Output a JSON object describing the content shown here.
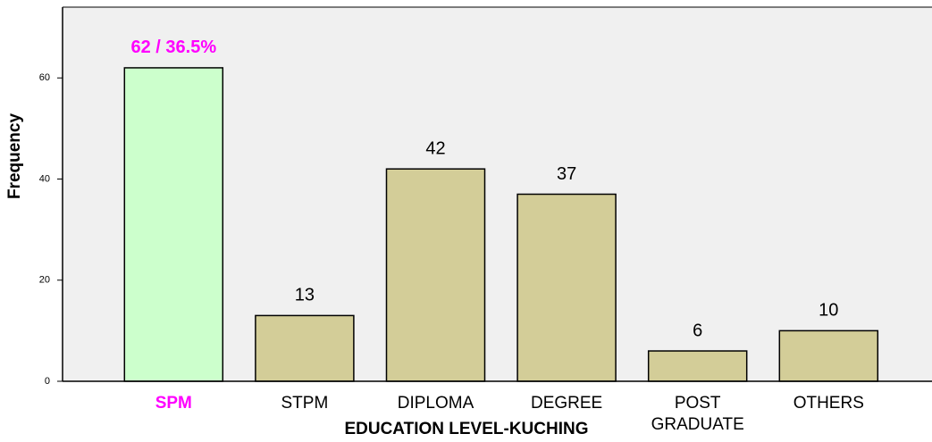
{
  "chart_data": {
    "type": "bar",
    "x_label": "EDUCATION LEVEL-KUCHING",
    "y_label": "Frequency",
    "categories": [
      "SPM",
      "STPM",
      "DIPLOMA",
      "DEGREE",
      "POST GRADUATE",
      "OTHERS"
    ],
    "values": [
      62,
      13,
      42,
      37,
      6,
      10
    ],
    "value_labels": [
      "62 / 36.5%",
      "13",
      "42",
      "37",
      "6",
      "10"
    ],
    "colors": [
      "#ccffcc",
      "#d3cd98",
      "#d3cd98",
      "#d3cd98",
      "#d3cd98",
      "#d3cd98"
    ],
    "highlight": {
      "index": 0,
      "color": "#ff00ff"
    },
    "background": "#f0f0f0",
    "ylim": [
      0,
      74
    ],
    "yticks": [
      0,
      20,
      40,
      60
    ],
    "grid": false
  }
}
